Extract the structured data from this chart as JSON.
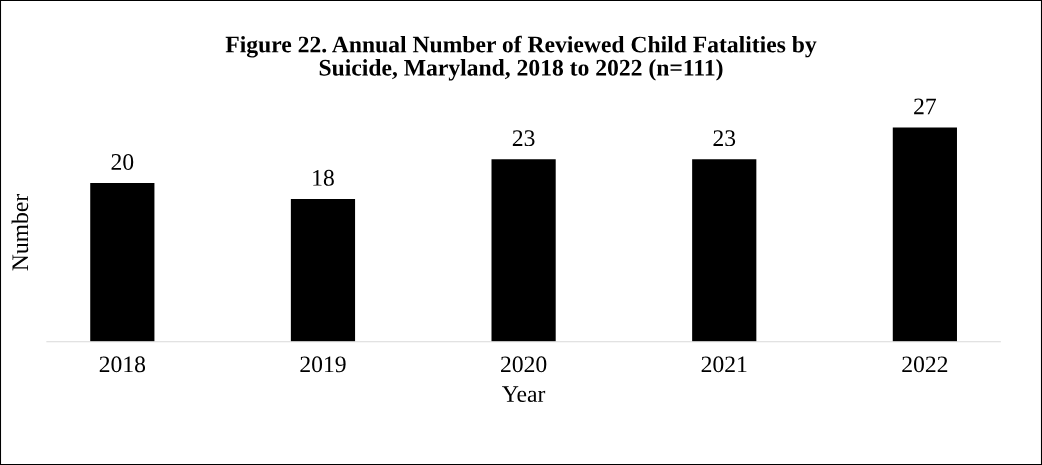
{
  "chart_data": {
    "type": "bar",
    "title": "Figure 22. Annual Number of Reviewed Child Fatalities by\nSuicide, Maryland, 2018 to 2022 (n=111)",
    "xlabel": "Year",
    "ylabel": "Number",
    "categories": [
      "2018",
      "2019",
      "2020",
      "2021",
      "2022"
    ],
    "values": [
      20,
      18,
      23,
      23,
      27
    ],
    "color": "#000000",
    "data_labels": true
  }
}
